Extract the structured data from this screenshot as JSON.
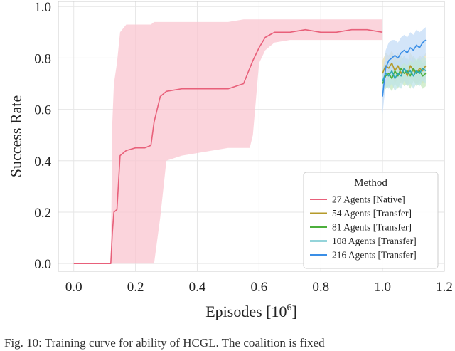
{
  "chart_data": {
    "type": "line",
    "title": "",
    "xlabel": "Episodes [10",
    "xlabel_sup": "6",
    "xlabel_tail": "]",
    "ylabel": "Success Rate",
    "xlim": [
      -0.05,
      1.2
    ],
    "ylim": [
      -0.03,
      1.02
    ],
    "xticks": [
      "0.0",
      "0.2",
      "0.4",
      "0.6",
      "0.8",
      "1.0",
      "1.2"
    ],
    "yticks": [
      "0.0",
      "0.2",
      "0.4",
      "0.6",
      "0.8",
      "1.0"
    ],
    "grid": true,
    "legend": {
      "title": "Method",
      "placement": "lower-right",
      "entries": [
        {
          "name": "27 Agents [Native]",
          "color": "#e8607a"
        },
        {
          "name": "54 Agents [Transfer]",
          "color": "#b59a2a"
        },
        {
          "name": "81 Agents [Transfer]",
          "color": "#4caf3c"
        },
        {
          "name": "108 Agents [Transfer]",
          "color": "#2aa8b5"
        },
        {
          "name": "216 Agents [Transfer]",
          "color": "#3a8ee6"
        }
      ]
    },
    "series": [
      {
        "name": "27 Agents [Native]",
        "color": "#e8607a",
        "band_color": "#f9c6d0",
        "x": [
          0.0,
          0.05,
          0.1,
          0.12,
          0.125,
          0.13,
          0.14,
          0.15,
          0.17,
          0.2,
          0.23,
          0.25,
          0.26,
          0.28,
          0.3,
          0.35,
          0.4,
          0.45,
          0.5,
          0.55,
          0.57,
          0.58,
          0.6,
          0.62,
          0.65,
          0.7,
          0.75,
          0.8,
          0.85,
          0.9,
          0.95,
          1.0
        ],
        "y": [
          0.0,
          0.0,
          0.0,
          0.0,
          0.12,
          0.2,
          0.21,
          0.42,
          0.44,
          0.45,
          0.45,
          0.46,
          0.55,
          0.65,
          0.67,
          0.68,
          0.68,
          0.68,
          0.68,
          0.7,
          0.76,
          0.79,
          0.84,
          0.88,
          0.9,
          0.9,
          0.91,
          0.9,
          0.9,
          0.91,
          0.91,
          0.9
        ],
        "lower": [
          0.0,
          0.0,
          0.0,
          0.0,
          0.0,
          0.0,
          0.0,
          0.0,
          0.0,
          0.0,
          0.0,
          0.0,
          0.0,
          0.18,
          0.4,
          0.42,
          0.43,
          0.44,
          0.45,
          0.45,
          0.45,
          0.5,
          0.78,
          0.83,
          0.86,
          0.87,
          0.87,
          0.87,
          0.87,
          0.87,
          0.87,
          0.87
        ],
        "upper": [
          0.0,
          0.0,
          0.0,
          0.0,
          0.55,
          0.7,
          0.78,
          0.9,
          0.93,
          0.93,
          0.93,
          0.93,
          0.94,
          0.94,
          0.94,
          0.94,
          0.94,
          0.94,
          0.94,
          0.95,
          0.95,
          0.95,
          0.95,
          0.95,
          0.95,
          0.95,
          0.95,
          0.95,
          0.95,
          0.95,
          0.95,
          0.95
        ]
      },
      {
        "name": "54 Agents [Transfer]",
        "color": "#b59a2a",
        "band_color": "#e8ddb0",
        "x": [
          1.0,
          1.01,
          1.02,
          1.03,
          1.04,
          1.05,
          1.06,
          1.07,
          1.08,
          1.09,
          1.1,
          1.11,
          1.12,
          1.13,
          1.14
        ],
        "y": [
          0.74,
          0.77,
          0.76,
          0.78,
          0.75,
          0.77,
          0.74,
          0.76,
          0.73,
          0.77,
          0.75,
          0.74,
          0.76,
          0.75,
          0.77
        ],
        "lower": [
          0.7,
          0.72,
          0.71,
          0.73,
          0.7,
          0.72,
          0.7,
          0.71,
          0.69,
          0.72,
          0.71,
          0.7,
          0.71,
          0.7,
          0.72
        ],
        "upper": [
          0.79,
          0.82,
          0.81,
          0.83,
          0.8,
          0.82,
          0.79,
          0.81,
          0.78,
          0.82,
          0.8,
          0.79,
          0.81,
          0.8,
          0.82
        ]
      },
      {
        "name": "81 Agents [Transfer]",
        "color": "#4caf3c",
        "band_color": "#c6e8bf",
        "x": [
          1.0,
          1.01,
          1.02,
          1.03,
          1.04,
          1.05,
          1.06,
          1.07,
          1.08,
          1.09,
          1.1,
          1.11,
          1.12,
          1.13,
          1.14
        ],
        "y": [
          0.7,
          0.73,
          0.74,
          0.72,
          0.75,
          0.73,
          0.76,
          0.74,
          0.75,
          0.73,
          0.76,
          0.74,
          0.75,
          0.73,
          0.74
        ],
        "lower": [
          0.66,
          0.68,
          0.69,
          0.67,
          0.7,
          0.68,
          0.71,
          0.69,
          0.7,
          0.68,
          0.71,
          0.69,
          0.7,
          0.68,
          0.69
        ],
        "upper": [
          0.75,
          0.78,
          0.79,
          0.77,
          0.8,
          0.78,
          0.81,
          0.79,
          0.8,
          0.78,
          0.81,
          0.79,
          0.8,
          0.78,
          0.79
        ]
      },
      {
        "name": "108 Agents [Transfer]",
        "color": "#2aa8b5",
        "band_color": "#bfe4e8",
        "x": [
          1.0,
          1.01,
          1.02,
          1.03,
          1.04,
          1.05,
          1.06,
          1.07,
          1.08,
          1.09,
          1.1,
          1.11,
          1.12,
          1.13,
          1.14
        ],
        "y": [
          0.71,
          0.74,
          0.73,
          0.75,
          0.72,
          0.74,
          0.73,
          0.76,
          0.74,
          0.75,
          0.73,
          0.75,
          0.74,
          0.76,
          0.75
        ],
        "lower": [
          0.66,
          0.69,
          0.68,
          0.7,
          0.67,
          0.69,
          0.68,
          0.71,
          0.69,
          0.7,
          0.68,
          0.7,
          0.69,
          0.71,
          0.7
        ],
        "upper": [
          0.76,
          0.79,
          0.78,
          0.8,
          0.77,
          0.79,
          0.78,
          0.81,
          0.79,
          0.8,
          0.78,
          0.8,
          0.79,
          0.81,
          0.8
        ]
      },
      {
        "name": "216 Agents [Transfer]",
        "color": "#3a8ee6",
        "band_color": "#c4dcf7",
        "x": [
          1.0,
          1.01,
          1.02,
          1.03,
          1.04,
          1.05,
          1.06,
          1.07,
          1.08,
          1.09,
          1.1,
          1.11,
          1.12,
          1.13,
          1.14
        ],
        "y": [
          0.65,
          0.76,
          0.79,
          0.8,
          0.81,
          0.8,
          0.82,
          0.83,
          0.82,
          0.84,
          0.83,
          0.85,
          0.84,
          0.86,
          0.87
        ],
        "lower": [
          0.58,
          0.7,
          0.74,
          0.75,
          0.76,
          0.75,
          0.77,
          0.78,
          0.77,
          0.79,
          0.78,
          0.8,
          0.79,
          0.8,
          0.81
        ],
        "upper": [
          0.72,
          0.83,
          0.86,
          0.87,
          0.87,
          0.86,
          0.88,
          0.89,
          0.88,
          0.9,
          0.89,
          0.91,
          0.9,
          0.91,
          0.92
        ]
      }
    ]
  },
  "caption": "Fig. 10: Training curve for ability of HCGL. The coalition is fixed"
}
